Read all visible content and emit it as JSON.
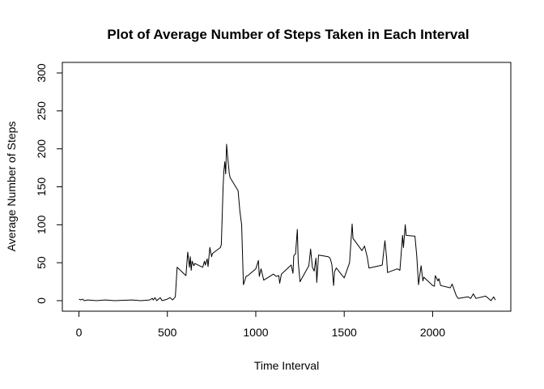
{
  "chart_data": {
    "type": "line",
    "title": "Plot of Average Number of Steps Taken in Each Interval",
    "xlabel": "Time Interval",
    "ylabel": "Average Number of Steps",
    "xlim": [
      0,
      2355
    ],
    "ylim": [
      0,
      300
    ],
    "x_ticks": [
      0,
      500,
      1000,
      1500,
      2000
    ],
    "y_ticks": [
      0,
      50,
      100,
      150,
      200,
      250,
      300
    ],
    "line_color": "#000000",
    "grid": false,
    "series": [
      {
        "x": [
          0,
          10,
          20,
          30,
          50,
          100,
          150,
          200,
          300,
          350,
          400,
          415,
          420,
          430,
          440,
          450,
          460,
          470,
          500,
          515,
          530,
          545,
          555,
          605,
          615,
          625,
          630,
          635,
          640,
          650,
          655,
          700,
          710,
          715,
          725,
          730,
          740,
          750,
          755,
          800,
          805,
          815,
          820,
          825,
          830,
          835,
          840,
          845,
          850,
          855,
          900,
          910,
          920,
          930,
          945,
          955,
          1000,
          1015,
          1020,
          1030,
          1045,
          1100,
          1115,
          1130,
          1135,
          1145,
          1200,
          1210,
          1215,
          1225,
          1235,
          1240,
          1250,
          1300,
          1310,
          1320,
          1330,
          1340,
          1345,
          1355,
          1410,
          1420,
          1430,
          1440,
          1445,
          1455,
          1500,
          1530,
          1545,
          1550,
          1600,
          1615,
          1630,
          1640,
          1700,
          1715,
          1720,
          1730,
          1740,
          1745,
          1800,
          1815,
          1830,
          1835,
          1845,
          1850,
          1900,
          1910,
          1920,
          1930,
          1935,
          1945,
          1950,
          2000,
          2010,
          2015,
          2030,
          2035,
          2045,
          2100,
          2110,
          2130,
          2135,
          2145,
          2200,
          2215,
          2230,
          2245,
          2300,
          2310,
          2330,
          2345,
          2355
        ],
        "values": [
          2,
          1,
          2,
          0,
          1,
          0,
          1,
          0,
          1,
          0,
          1,
          3,
          1,
          4,
          0,
          2,
          4,
          0,
          2,
          4,
          1,
          5,
          44,
          33,
          64,
          44,
          58,
          40,
          52,
          46,
          49,
          44,
          52,
          47,
          55,
          45,
          70,
          58,
          62,
          70,
          74,
          150,
          171,
          183,
          167,
          206,
          192,
          180,
          168,
          162,
          145,
          118,
          100,
          21,
          32,
          33,
          42,
          53,
          32,
          42,
          27,
          35,
          32,
          33,
          23,
          35,
          47,
          36,
          59,
          62,
          94,
          51,
          25,
          46,
          68,
          44,
          39,
          56,
          24,
          60,
          58,
          56,
          48,
          20,
          38,
          43,
          30,
          50,
          101,
          82,
          66,
          72,
          58,
          43,
          46,
          47,
          58,
          79,
          56,
          37,
          42,
          40,
          86,
          70,
          100,
          86,
          85,
          59,
          21,
          38,
          46,
          26,
          31,
          20,
          19,
          33,
          26,
          29,
          20,
          17,
          22,
          9,
          6,
          3,
          5,
          3,
          9,
          3,
          6,
          4,
          0,
          5,
          1
        ]
      }
    ]
  }
}
